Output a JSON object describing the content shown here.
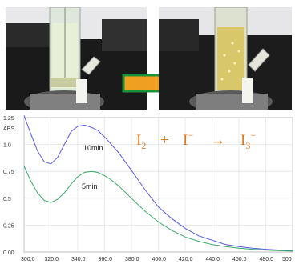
{
  "photos": {
    "before": "left photo: clear solution in reaction column",
    "after": "right photo: yellow solution in reaction column"
  },
  "arrow_color": "#f0a020",
  "arrow_outline": "#1e8f3a",
  "chart_data": {
    "type": "line",
    "ylabel": "ABS",
    "xlim": [
      300,
      500
    ],
    "ylim": [
      0,
      1.25
    ],
    "x_ticks": [
      "300.0",
      "320.0",
      "340.0",
      "360.0",
      "380.0",
      "400.0",
      "420.0",
      "440.0",
      "460.0",
      "480.0",
      "500"
    ],
    "y_ticks": [
      "0.00",
      "0.25",
      "0.5",
      "0.75",
      "1.0",
      "1.25"
    ],
    "grid": true,
    "equation": {
      "I2": "I",
      "I2_sub": "2",
      "plus": "+",
      "Iminus": "I",
      "Iminus_sup": "−",
      "arrow": "→",
      "I3": "I",
      "I3_sub": "3",
      "I3_sup": "−"
    },
    "series": [
      {
        "name": "10min",
        "color": "#5a5ae0",
        "x": [
          300,
          305,
          310,
          315,
          320,
          325,
          330,
          335,
          340,
          345,
          350,
          355,
          360,
          365,
          370,
          380,
          390,
          400,
          410,
          420,
          430,
          440,
          450,
          460,
          470,
          480,
          490,
          500
        ],
        "y": [
          1.27,
          1.1,
          0.94,
          0.84,
          0.82,
          0.88,
          1.0,
          1.12,
          1.17,
          1.18,
          1.16,
          1.13,
          1.07,
          1.0,
          0.93,
          0.76,
          0.58,
          0.42,
          0.31,
          0.22,
          0.15,
          0.11,
          0.07,
          0.05,
          0.035,
          0.025,
          0.018,
          0.012
        ]
      },
      {
        "name": "5min",
        "color": "#3aaa6a",
        "x": [
          300,
          305,
          310,
          315,
          320,
          325,
          330,
          335,
          340,
          345,
          350,
          355,
          360,
          365,
          370,
          380,
          390,
          400,
          410,
          420,
          430,
          440,
          450,
          460,
          470,
          480,
          490,
          500
        ],
        "y": [
          0.8,
          0.66,
          0.55,
          0.48,
          0.46,
          0.49,
          0.55,
          0.63,
          0.7,
          0.74,
          0.75,
          0.74,
          0.71,
          0.67,
          0.62,
          0.5,
          0.38,
          0.28,
          0.2,
          0.14,
          0.1,
          0.07,
          0.05,
          0.035,
          0.025,
          0.018,
          0.012,
          0.008
        ]
      }
    ]
  }
}
